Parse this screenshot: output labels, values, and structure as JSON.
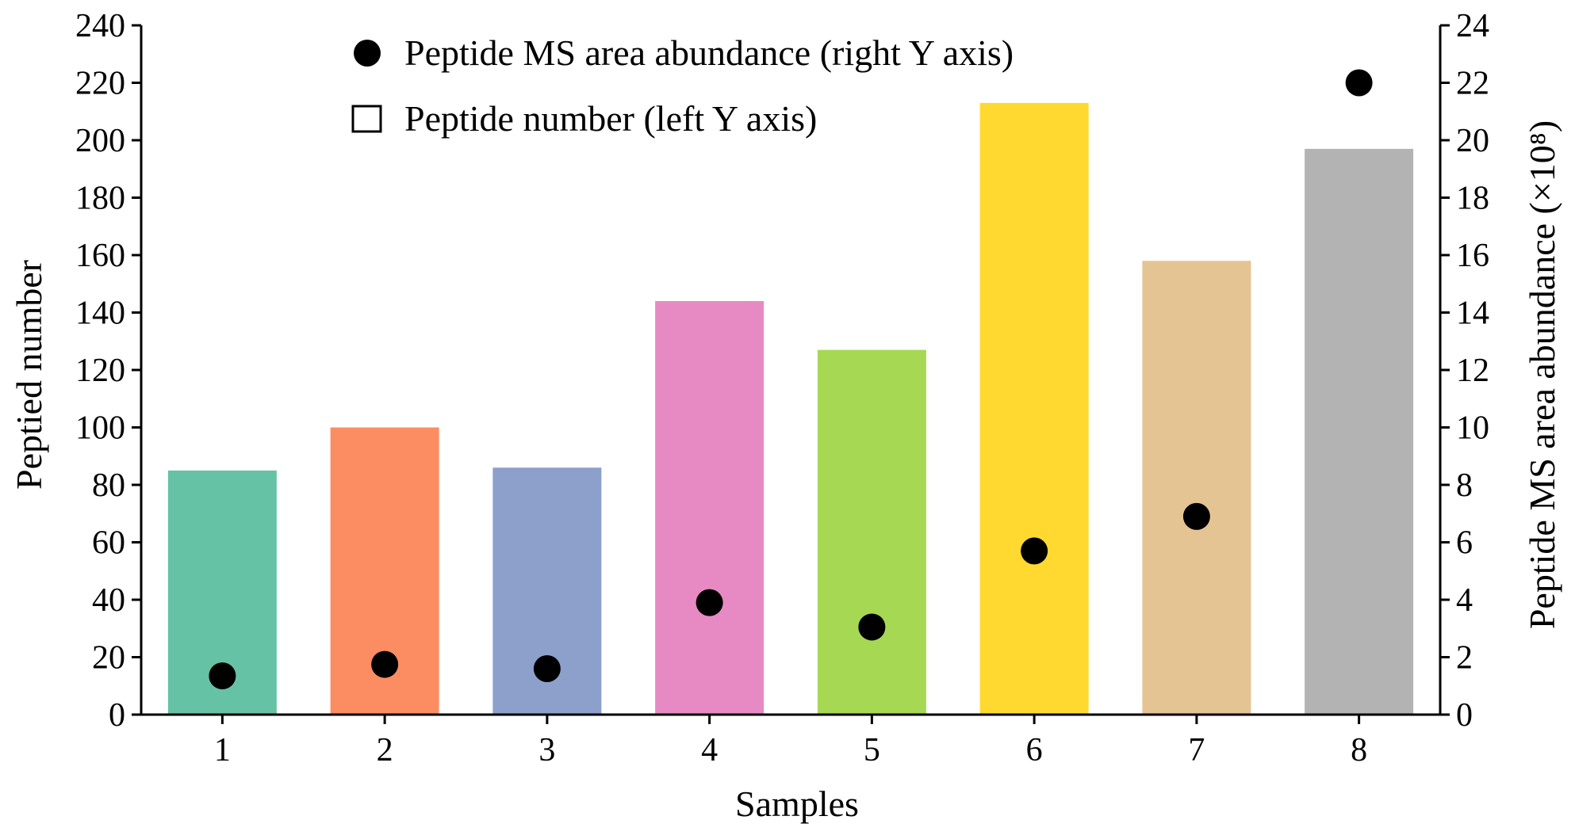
{
  "chart_data": {
    "type": "bar",
    "title": "",
    "xlabel": "Samples",
    "ylabel": "Peptied number",
    "y2label": "Peptide MS area abundance (×10⁸)",
    "ylim": [
      0,
      240
    ],
    "y2lim": [
      0,
      24
    ],
    "yticks": [
      "0",
      "20",
      "40",
      "60",
      "80",
      "100",
      "120",
      "140",
      "160",
      "180",
      "200",
      "220",
      "240"
    ],
    "y2ticks": [
      "0",
      "2",
      "4",
      "6",
      "8",
      "10",
      "12",
      "14",
      "16",
      "18",
      "20",
      "22",
      "24"
    ],
    "categories": [
      "1",
      "2",
      "3",
      "4",
      "5",
      "6",
      "7",
      "8"
    ],
    "series": [
      {
        "name": "Peptide number (left Y axis)",
        "type": "bar",
        "axis": "left",
        "values": [
          85,
          100,
          86,
          144,
          127,
          213,
          158,
          197
        ],
        "colors": [
          "#66c2a5",
          "#fc8d62",
          "#8da0cb",
          "#e78ac3",
          "#a6d854",
          "#ffd92f",
          "#e5c494",
          "#b3b3b3"
        ]
      },
      {
        "name": "Peptide MS area abundance (right Y axis)",
        "type": "scatter",
        "axis": "right",
        "values": [
          1.35,
          1.75,
          1.6,
          3.9,
          3.05,
          5.7,
          6.9,
          22.0
        ],
        "color": "#000000"
      }
    ],
    "legend": {
      "position": "top-center",
      "items": [
        {
          "label": "Peptide MS area abundance (right Y axis)",
          "marker": "filled-circle"
        },
        {
          "label": "Peptide number (left Y axis)",
          "marker": "open-square"
        }
      ]
    },
    "grid": false
  }
}
